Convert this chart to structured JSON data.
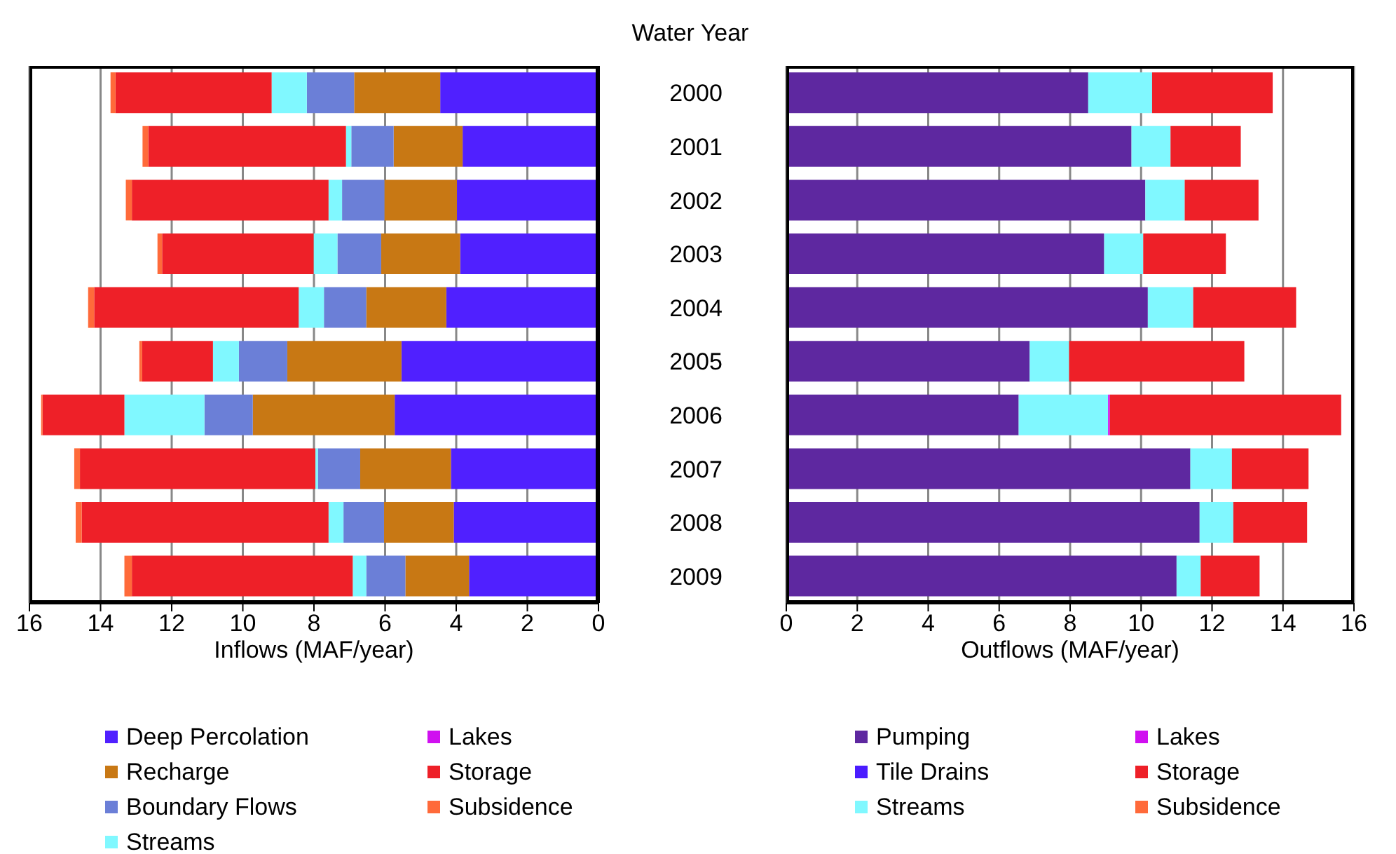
{
  "chart_data": [
    {
      "type": "bar",
      "orientation": "horizontal",
      "stacked": true,
      "ylabel": "Water Year",
      "xlabel": "Inflows (MAF/year)",
      "categories": [
        "2000",
        "2001",
        "2002",
        "2003",
        "2004",
        "2005",
        "2006",
        "2007",
        "2008",
        "2009"
      ],
      "xlim": [
        16,
        0
      ],
      "xticks": [
        16,
        14,
        12,
        10,
        8,
        6,
        4,
        2,
        0
      ],
      "grid": "x",
      "legend": "bottom",
      "series": [
        {
          "name": "Deep Percolation",
          "color": "#5020ff",
          "values": [
            4.45,
            3.82,
            3.98,
            3.89,
            4.28,
            5.54,
            5.73,
            4.15,
            4.07,
            3.64
          ]
        },
        {
          "name": "Recharge",
          "color": "#c87814",
          "values": [
            2.42,
            1.94,
            2.04,
            2.22,
            2.25,
            3.21,
            3.99,
            2.55,
            1.96,
            1.79
          ]
        },
        {
          "name": "Boundary Flows",
          "color": "#6b7fd7",
          "values": [
            1.33,
            1.19,
            1.19,
            1.23,
            1.19,
            1.36,
            1.36,
            1.19,
            1.14,
            1.1
          ]
        },
        {
          "name": "Streams",
          "color": "#80f8ff",
          "values": [
            0.99,
            0.15,
            0.38,
            0.67,
            0.71,
            0.73,
            2.25,
            0.07,
            0.42,
            0.38
          ]
        },
        {
          "name": "Lakes",
          "color": "#d010f0",
          "values": [
            null,
            null,
            null,
            null,
            null,
            null,
            null,
            null,
            null,
            null
          ]
        },
        {
          "name": "Storage",
          "color": "#ee2028",
          "values": [
            4.39,
            5.56,
            5.53,
            4.26,
            5.75,
            1.99,
            2.3,
            6.62,
            6.94,
            6.21
          ]
        },
        {
          "name": "Subsidence",
          "color": "#ff6a3a",
          "values": [
            0.14,
            0.16,
            0.17,
            0.13,
            0.17,
            0.08,
            0.04,
            0.16,
            0.17,
            0.21
          ]
        }
      ]
    },
    {
      "type": "bar",
      "orientation": "horizontal",
      "stacked": true,
      "xlabel": "Outflows (MAF/year)",
      "tick_labels": "x",
      "categories": [
        "2000",
        "2001",
        "2002",
        "2003",
        "2004",
        "2005",
        "2006",
        "2007",
        "2008",
        "2009"
      ],
      "xlim": [
        0,
        16
      ],
      "xticks": [
        0,
        2,
        4,
        6,
        8,
        10,
        12,
        14,
        16
      ],
      "grid": "x",
      "legend": "bottom",
      "series": [
        {
          "name": "Pumping",
          "color": "#5e28a0",
          "values": [
            8.51,
            9.73,
            10.12,
            8.96,
            10.19,
            6.86,
            6.55,
            11.39,
            11.65,
            11.0
          ]
        },
        {
          "name": "Tile Drains",
          "color": "#4a1cff",
          "values": [
            null,
            null,
            null,
            null,
            null,
            null,
            null,
            null,
            null,
            null
          ]
        },
        {
          "name": "Streams",
          "color": "#80f8ff",
          "values": [
            1.8,
            1.1,
            1.11,
            1.1,
            1.28,
            1.11,
            2.52,
            1.17,
            0.95,
            0.68
          ]
        },
        {
          "name": "Lakes",
          "color": "#d010f0",
          "values": [
            null,
            null,
            null,
            null,
            null,
            null,
            0.05,
            null,
            null,
            null
          ]
        },
        {
          "name": "Storage",
          "color": "#ee2028",
          "values": [
            3.4,
            1.98,
            2.08,
            2.33,
            2.9,
            4.94,
            6.52,
            2.16,
            2.08,
            1.66
          ]
        },
        {
          "name": "Subsidence",
          "color": "#ff6a3a",
          "values": [
            null,
            null,
            null,
            null,
            null,
            null,
            null,
            null,
            null,
            null
          ]
        }
      ]
    }
  ]
}
